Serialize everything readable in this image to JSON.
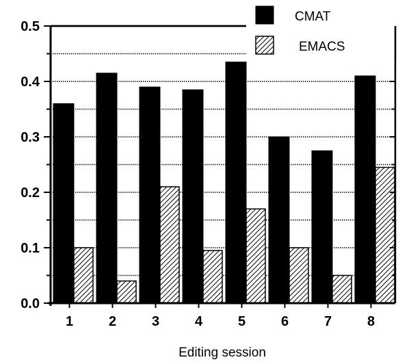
{
  "chart_data": {
    "type": "bar",
    "categories": [
      "1",
      "2",
      "3",
      "4",
      "5",
      "6",
      "7",
      "8"
    ],
    "series": [
      {
        "name": "CMAT",
        "values": [
          0.36,
          0.415,
          0.39,
          0.385,
          0.435,
          0.3,
          0.275,
          0.41
        ]
      },
      {
        "name": "EMACS",
        "values": [
          0.1,
          0.04,
          0.21,
          0.095,
          0.17,
          0.1,
          0.05,
          0.245
        ]
      }
    ],
    "title": "",
    "xlabel": "Editing session",
    "ylabel": "",
    "ylim": [
      0,
      0.5
    ],
    "yticks": [
      "0.0",
      "0.1",
      "0.2",
      "0.3",
      "0.4",
      "0.5"
    ],
    "grid": true,
    "legend": "top-right",
    "colors": {
      "CMAT": "#000000",
      "EMACS": "hatched"
    }
  }
}
